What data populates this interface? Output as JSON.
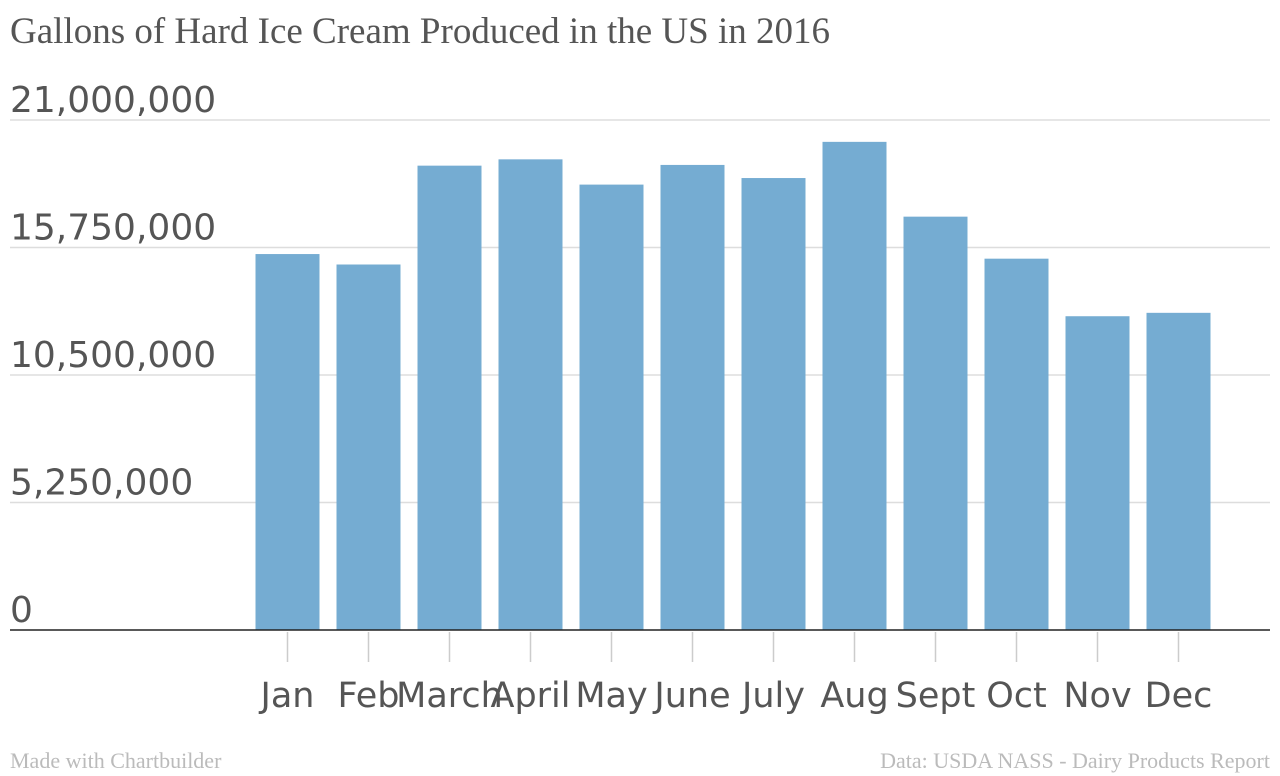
{
  "chart_data": {
    "type": "bar",
    "title": "Gallons of Hard Ice Cream Produced in the US in 2016",
    "categories": [
      "Jan",
      "Feb",
      "March",
      "April",
      "May",
      "June",
      "July",
      "Aug",
      "Sept",
      "Oct",
      "Nov",
      "Dec"
    ],
    "values": [
      15480000,
      15050000,
      19120000,
      19380000,
      18340000,
      19150000,
      18610000,
      20100000,
      17020000,
      15290000,
      12920000,
      13060000
    ],
    "yticks": [
      "0",
      "5,250,000",
      "10,500,000",
      "15,750,000",
      "21,000,000"
    ],
    "ylim": [
      0,
      21000000
    ],
    "grid": true,
    "bar_color": "#75acd2"
  },
  "footer": {
    "left": "Made with Chartbuilder",
    "right": "Data: USDA NASS - Dairy Products Report"
  }
}
